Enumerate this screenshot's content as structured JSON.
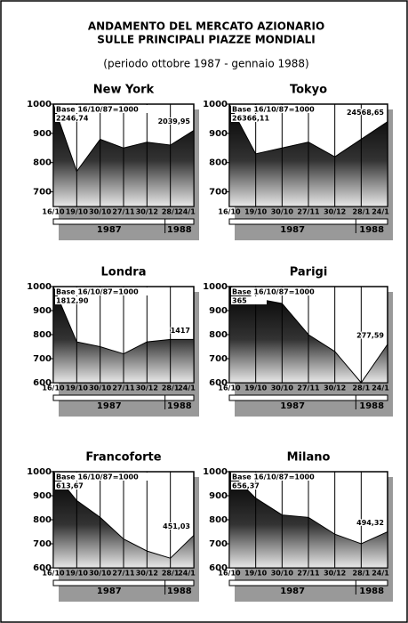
{
  "title": "ANDAMENTO DEL MERCATO AZIONARIO",
  "subtitle": "SULLE PRINCIPALI PIAZZE MONDIALI",
  "period": "(periodo ottobre 1987 - gennaio 1988)",
  "chart_data": [
    {
      "type": "area",
      "title": "New York",
      "annotation": "Base 16/10/87=1000",
      "start_label": "2246,74",
      "end_label": "2039,95",
      "categories": [
        "16/10",
        "19/10",
        "30/10",
        "27/11",
        "30/12",
        "28/1",
        "24/1"
      ],
      "years": [
        "1987",
        "1988"
      ],
      "values": [
        1000,
        770,
        880,
        850,
        870,
        860,
        910
      ],
      "ylim": [
        650,
        1000
      ],
      "yticks": [
        700,
        800,
        900,
        1000
      ]
    },
    {
      "type": "area",
      "title": "Tokyo",
      "annotation": "Base 16/10/87=1000",
      "start_label": "26366,11",
      "end_label": "24568,65",
      "categories": [
        "16/10",
        "19/10",
        "30/10",
        "27/11",
        "30/12",
        "28/1",
        "24/1"
      ],
      "years": [
        "1987",
        "1988"
      ],
      "values": [
        1000,
        830,
        850,
        870,
        820,
        880,
        940
      ],
      "ylim": [
        650,
        1000
      ],
      "yticks": [
        700,
        800,
        900,
        1000
      ]
    },
    {
      "type": "area",
      "title": "Londra",
      "annotation": "Base 16/10/87=1000",
      "start_label": "1812,90",
      "end_label": "1417",
      "categories": [
        "16/10",
        "19/10",
        "30/10",
        "27/11",
        "30/12",
        "28/1",
        "24/1"
      ],
      "years": [
        "1987",
        "1988"
      ],
      "values": [
        1000,
        770,
        750,
        720,
        770,
        780,
        780
      ],
      "ylim": [
        600,
        1000
      ],
      "yticks": [
        600,
        700,
        800,
        900,
        1000
      ]
    },
    {
      "type": "area",
      "title": "Parigi",
      "annotation": "Base 16/10/87=1000",
      "start_label": "365",
      "end_label": "277,59",
      "categories": [
        "16/10",
        "19/10",
        "30/10",
        "27/11",
        "30/12",
        "28/1",
        "24/1"
      ],
      "years": [
        "1987",
        "1988"
      ],
      "values": [
        1000,
        950,
        930,
        800,
        730,
        600,
        760
      ],
      "ylim": [
        600,
        1000
      ],
      "yticks": [
        600,
        700,
        800,
        900,
        1000
      ]
    },
    {
      "type": "area",
      "title": "Francoforte",
      "annotation": "Base 16/10/87=1000",
      "start_label": "613,67",
      "end_label": "451,03",
      "categories": [
        "16/10",
        "19/10",
        "30/10",
        "27/11",
        "30/12",
        "28/1",
        "24/1"
      ],
      "years": [
        "1987",
        "1988"
      ],
      "values": [
        1000,
        880,
        810,
        720,
        670,
        640,
        735
      ],
      "ylim": [
        600,
        1000
      ],
      "yticks": [
        600,
        700,
        800,
        900,
        1000
      ]
    },
    {
      "type": "area",
      "title": "Milano",
      "annotation": "Base 16/10/87=1000",
      "start_label": "656,37",
      "end_label": "494,32",
      "categories": [
        "16/10",
        "19/10",
        "30/10",
        "27/11",
        "30/12",
        "28/1",
        "24/1"
      ],
      "years": [
        "1987",
        "1988"
      ],
      "values": [
        1000,
        890,
        820,
        810,
        740,
        700,
        750
      ],
      "ylim": [
        600,
        1000
      ],
      "yticks": [
        600,
        700,
        800,
        900,
        1000
      ]
    }
  ]
}
